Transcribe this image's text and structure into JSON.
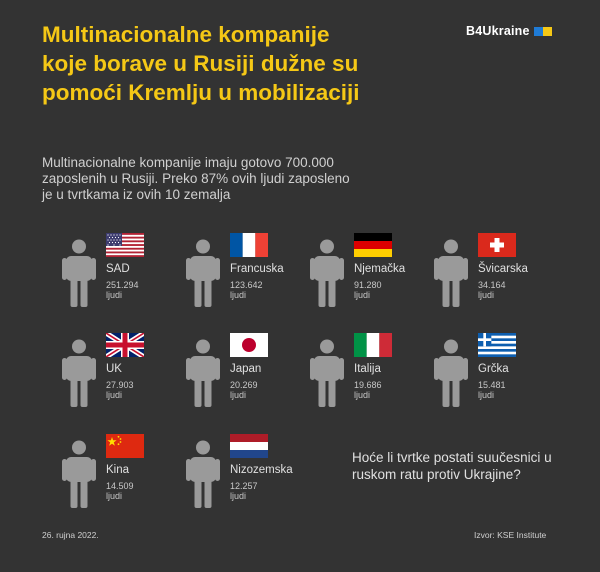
{
  "title": "Multinacionalne kompanije koje borave u Rusiji dužne su pomoći Kremlju u mobilizaciji",
  "brand": "B4Ukraine",
  "subtitle": "Multinacionalne kompanije imaju gotovo 700.000 zaposlenih u Rusiji. Preko 87% ovih ljudi zaposleno je u tvrtkama iz ovih 10 zemalja",
  "countries": [
    {
      "name": "SAD",
      "value": "251.294",
      "unit": "ljudi",
      "flag": "usa-flag"
    },
    {
      "name": "Francuska",
      "value": "123.642",
      "unit": "ljudi",
      "flag": "france-flag"
    },
    {
      "name": "Njemačka",
      "value": "91.280",
      "unit": "ljudi",
      "flag": "germany-flag"
    },
    {
      "name": "Švicarska",
      "value": "34.164",
      "unit": "ljudi",
      "flag": "switzerland-flag"
    },
    {
      "name": "UK",
      "value": "27.903",
      "unit": "ljudi",
      "flag": "uk-flag"
    },
    {
      "name": "Japan",
      "value": "20.269",
      "unit": "ljudi",
      "flag": "japan-flag"
    },
    {
      "name": "Italija",
      "value": "19.686",
      "unit": "ljudi",
      "flag": "italy-flag"
    },
    {
      "name": "Grčka",
      "value": "15.481",
      "unit": "ljudi",
      "flag": "greece-flag"
    },
    {
      "name": "Kina",
      "value": "14.509",
      "unit": "ljudi",
      "flag": "china-flag"
    },
    {
      "name": "Nizozemska",
      "value": "12.257",
      "unit": "ljudi",
      "flag": "netherlands-flag"
    }
  ],
  "question": "Hoće li tvrtke postati suučesnici u ruskom ratu protiv Ukrajine?",
  "date": "26. rujna 2022.",
  "source": "Izvor: KSE Institute",
  "colors": {
    "background": "#333333",
    "title": "#f5c816",
    "person_icon": "#9a9a9a",
    "ukraine_blue": "#1f7bd6",
    "ukraine_yellow": "#f5c816"
  }
}
